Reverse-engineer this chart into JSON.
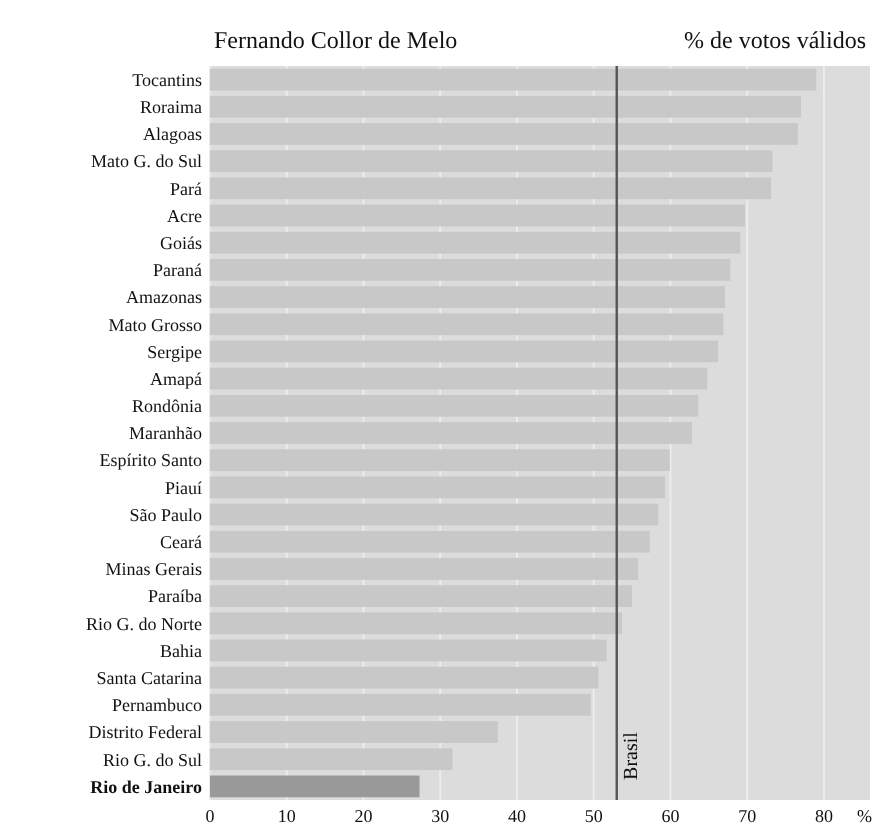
{
  "chart_data": {
    "type": "bar",
    "orientation": "horizontal",
    "title": "Fernando Collor de Melo",
    "subtitle": "% de votos válidos",
    "xlabel": "%",
    "categories": [
      "Tocantins",
      "Roraima",
      "Alagoas",
      "Mato G. do Sul",
      "Pará",
      "Acre",
      "Goiás",
      "Paraná",
      "Amazonas",
      "Mato Grosso",
      "Sergipe",
      "Amapá",
      "Rondônia",
      "Maranhão",
      "Espírito Santo",
      "Piauí",
      "São Paulo",
      "Ceará",
      "Minas Gerais",
      "Paraíba",
      "Rio G. do Norte",
      "Bahia",
      "Santa Catarina",
      "Pernambuco",
      "Distrito Federal",
      "Rio G. do Sul",
      "Rio de Janeiro"
    ],
    "values": [
      79,
      77,
      76.6,
      73.3,
      73.1,
      69.7,
      69.1,
      67.8,
      67.1,
      66.9,
      66.2,
      64.8,
      63.6,
      62.8,
      59.9,
      59.3,
      58.4,
      57.3,
      55.8,
      55,
      53.7,
      51.7,
      50.6,
      49.6,
      37.5,
      31.6,
      27.3
    ],
    "colors": [
      "#c8c8c8",
      "#c8c8c8",
      "#c8c8c8",
      "#c8c8c8",
      "#c8c8c8",
      "#c8c8c8",
      "#c8c8c8",
      "#c8c8c8",
      "#c8c8c8",
      "#c8c8c8",
      "#c8c8c8",
      "#c8c8c8",
      "#c8c8c8",
      "#c8c8c8",
      "#c8c8c8",
      "#c8c8c8",
      "#c8c8c8",
      "#c8c8c8",
      "#c8c8c8",
      "#c8c8c8",
      "#c8c8c8",
      "#c8c8c8",
      "#c8c8c8",
      "#c8c8c8",
      "#c8c8c8",
      "#c8c8c8",
      "#999999"
    ],
    "xlim": [
      0,
      86
    ],
    "xticks": [
      0,
      10,
      20,
      30,
      40,
      50,
      60,
      70,
      80
    ],
    "grid": "x",
    "ref_lines": [
      {
        "axis": "x",
        "value": 53,
        "label": "Brasil",
        "color": "#555555"
      }
    ]
  }
}
